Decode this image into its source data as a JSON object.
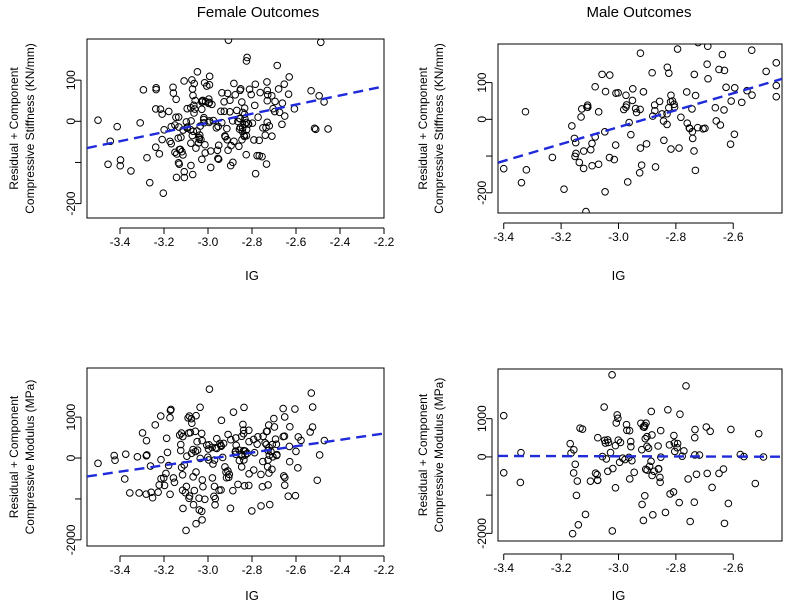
{
  "figure": {
    "col_titles": [
      "Female Outcomes",
      "Male Outcomes"
    ],
    "colors": {
      "points": "#000000",
      "fit_line": "#1f2bdb",
      "axes": "#000000"
    }
  },
  "chart_data": [
    {
      "type": "scatter",
      "panel": "female-stiffness",
      "title": "Female Outcomes",
      "xlabel": "IG",
      "ylabel_lines": [
        "Residual + Component",
        "Compressive Stiffness (KN/mm)"
      ],
      "xlim": [
        -3.55,
        -2.2
      ],
      "ylim": [
        -235,
        200
      ],
      "xticks": [
        -3.4,
        -3.2,
        -3.0,
        -2.8,
        -2.6,
        -2.4,
        -2.2
      ],
      "xtick_labels": [
        "-3.4",
        "-3.2",
        "-3.0",
        "-2.8",
        "-2.6",
        "-2.4",
        "-2.2"
      ],
      "yticks": [
        -200,
        -100,
        0,
        100
      ],
      "ytick_labels": [
        "-200",
        "",
        "0",
        "100"
      ],
      "fit_line": {
        "x": [
          -3.55,
          -2.2
        ],
        "y": [
          -65,
          85
        ]
      },
      "n_points": 200,
      "x_range": [
        -3.5,
        -2.25
      ],
      "x_center": -2.95,
      "slope": 111,
      "y_sd": 70,
      "seed": 11,
      "gridlines": false
    },
    {
      "type": "scatter",
      "panel": "male-stiffness",
      "title": "Male Outcomes",
      "xlabel": "IG",
      "ylabel_lines": [
        "Residual + Component",
        "Compressive Stiffness (KN/mm)"
      ],
      "xlim": [
        -3.42,
        -2.43
      ],
      "ylim": [
        -255,
        205
      ],
      "xticks": [
        -3.4,
        -3.2,
        -3.0,
        -2.8,
        -2.6
      ],
      "xtick_labels": [
        "-3.4",
        "-3.2",
        "-3.0",
        "-2.8",
        "-2.6"
      ],
      "yticks": [
        -200,
        -100,
        0,
        100
      ],
      "ytick_labels": [
        "-200",
        "",
        "0",
        "100"
      ],
      "fit_line": {
        "x": [
          -3.42,
          -2.43
        ],
        "y": [
          -118,
          110
        ]
      },
      "n_points": 120,
      "x_range": [
        -3.4,
        -2.45
      ],
      "x_center": -2.9,
      "slope": 230,
      "y_sd": 80,
      "seed": 23,
      "gridlines": false
    },
    {
      "type": "scatter",
      "panel": "female-modulus",
      "title": "",
      "xlabel": "IG",
      "ylabel_lines": [
        "Residual + Component",
        "Compressive Modulus (MPa)"
      ],
      "xlim": [
        -3.55,
        -2.2
      ],
      "ylim": [
        -2150,
        2200
      ],
      "xticks": [
        -3.4,
        -3.2,
        -3.0,
        -2.8,
        -2.6,
        -2.4,
        -2.2
      ],
      "xtick_labels": [
        "-3.4",
        "-3.2",
        "-3.0",
        "-2.8",
        "-2.6",
        "-2.4",
        "-2.2"
      ],
      "yticks": [
        -2000,
        -1000,
        0,
        1000
      ],
      "ytick_labels": [
        "-2000",
        "",
        "0",
        "1000"
      ],
      "fit_line": {
        "x": [
          -3.55,
          -2.2
        ],
        "y": [
          -450,
          600
        ]
      },
      "n_points": 200,
      "x_range": [
        -3.5,
        -2.25
      ],
      "x_center": -2.95,
      "slope": 780,
      "y_sd": 700,
      "seed": 37,
      "gridlines": false
    },
    {
      "type": "scatter",
      "panel": "male-modulus",
      "title": "",
      "xlabel": "IG",
      "ylabel_lines": [
        "Residual + Component",
        "Compressive Modulus (MPa)"
      ],
      "xlim": [
        -3.42,
        -2.43
      ],
      "ylim": [
        -2200,
        2300
      ],
      "xticks": [
        -3.4,
        -3.2,
        -3.0,
        -2.8,
        -2.6
      ],
      "xtick_labels": [
        "-3.4",
        "-3.2",
        "-3.0",
        "-2.8",
        "-2.6"
      ],
      "yticks": [
        -2000,
        -1000,
        0,
        1000
      ],
      "ytick_labels": [
        "-2000",
        "",
        "0",
        "1000"
      ],
      "fit_line": {
        "x": [
          -3.42,
          -2.43
        ],
        "y": [
          25,
          5
        ]
      },
      "n_points": 120,
      "x_range": [
        -3.4,
        -2.45
      ],
      "x_center": -2.9,
      "slope": -20,
      "y_sd": 850,
      "seed": 53,
      "gridlines": false
    }
  ]
}
